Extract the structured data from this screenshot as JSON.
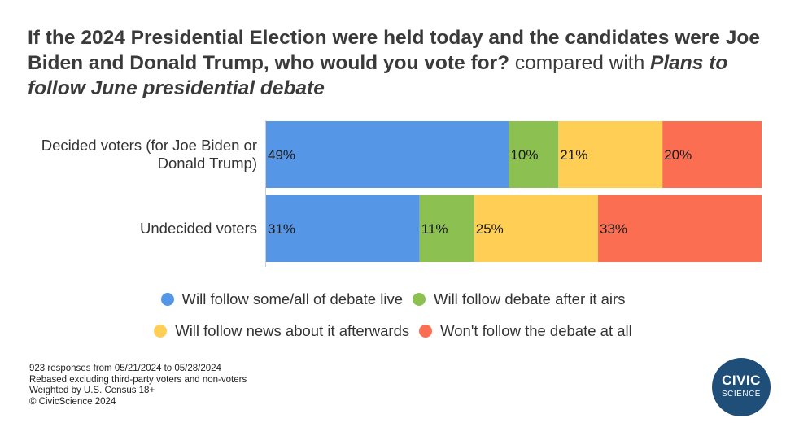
{
  "title": {
    "part1": "If the 2024 Presidential Election were held today and the candidates were Joe Biden and Donald Trump, who would you vote for?",
    "part2": "compared with",
    "part3": "Plans to follow June presidential debate"
  },
  "colors": {
    "live": "#5596e6",
    "after": "#8cc152",
    "news": "#ffce54",
    "wont": "#fc6e51"
  },
  "chart_data": {
    "type": "bar",
    "orientation": "horizontal",
    "stacked": true,
    "categories": [
      "Decided voters (for Joe Biden or Donald Trump)",
      "Undecided voters"
    ],
    "category_lines": [
      [
        "Decided voters (for Joe Biden or",
        "Donald Trump)"
      ],
      [
        "Undecided voters"
      ]
    ],
    "series": [
      {
        "name": "Will follow some/all of debate live",
        "values": [
          49,
          31
        ],
        "labels": [
          "49%",
          "31%"
        ]
      },
      {
        "name": "Will follow debate after it airs",
        "values": [
          10,
          11
        ],
        "labels": [
          "10%",
          "11%"
        ]
      },
      {
        "name": "Will follow news about it afterwards",
        "values": [
          21,
          25
        ],
        "labels": [
          "21%",
          "25%"
        ]
      },
      {
        "name": "Won't follow the debate at all",
        "values": [
          20,
          33
        ],
        "labels": [
          "20%",
          "33%"
        ]
      }
    ],
    "xlim": [
      0,
      100
    ],
    "legend_position": "bottom"
  },
  "footer": {
    "line1": "923 responses from 05/21/2024 to 05/28/2024",
    "line2": "Rebased excluding third-party voters and non-voters",
    "line3": "Weighted by U.S. Census 18+",
    "line4": "© CivicScience 2024"
  },
  "logo": {
    "line1": "CIVIC",
    "line2": "SCIENCE"
  }
}
